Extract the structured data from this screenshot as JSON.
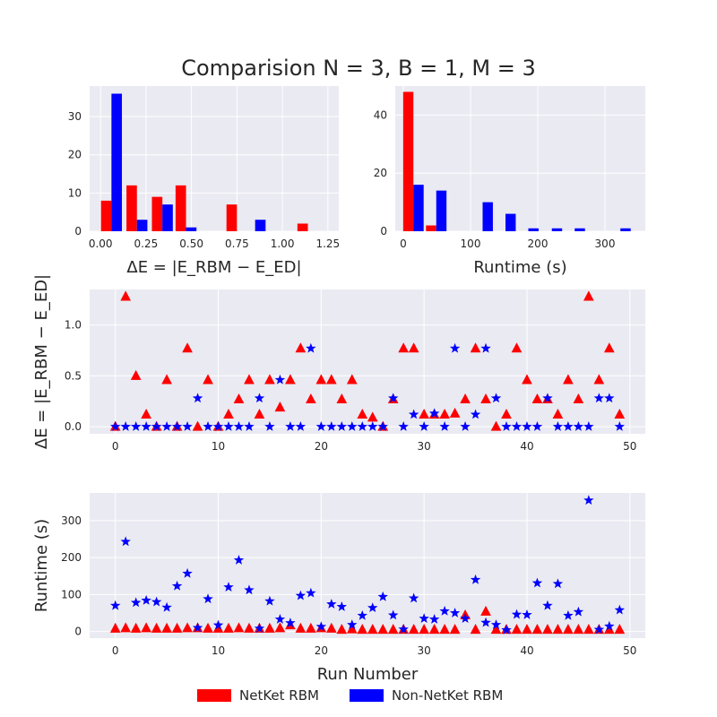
{
  "figure_title": "Comparision N = 3, B = 1, M = 3",
  "colors": {
    "netket": "#ff0000",
    "non_netket": "#0000ff",
    "panel_bg": "#eaeaf2",
    "grid": "#ffffff",
    "tick_text": "#262626"
  },
  "legend": {
    "netket_label": "NetKet RBM",
    "non_netket_label": "Non-NetKet RBM"
  },
  "chart_data": [
    {
      "id": "hist_energy",
      "type": "bar",
      "title": "",
      "xlabel": "ΔE = |E_RBM − E_ED|",
      "ylabel": "",
      "xlim": [
        -0.06,
        1.31
      ],
      "ylim": [
        0,
        38
      ],
      "xticks": [
        0.0,
        0.25,
        0.5,
        0.75,
        1.0,
        1.25
      ],
      "xtick_labels": [
        "0.00",
        "0.25",
        "0.50",
        "0.75",
        "1.00",
        "1.25"
      ],
      "yticks": [
        0,
        10,
        20,
        30
      ],
      "bin_width": 0.115,
      "bin_centers": [
        0.06,
        0.2,
        0.34,
        0.47,
        0.61,
        0.75,
        0.85,
        0.98,
        1.14
      ],
      "series": [
        {
          "name": "NetKet RBM",
          "values": [
            8,
            12,
            9,
            12,
            0,
            7,
            0,
            0,
            2
          ]
        },
        {
          "name": "Non-NetKet RBM",
          "values": [
            36,
            3,
            7,
            1,
            0,
            0,
            3,
            0,
            0
          ]
        }
      ],
      "grid": true
    },
    {
      "id": "hist_runtime",
      "type": "bar",
      "title": "",
      "xlabel": "Runtime (s)",
      "ylabel": "",
      "xlim": [
        -12,
        360
      ],
      "ylim": [
        0,
        50
      ],
      "xticks": [
        0,
        100,
        200,
        300
      ],
      "xtick_labels": [
        "0",
        "100",
        "200",
        "300"
      ],
      "yticks": [
        0,
        20,
        40
      ],
      "bin_width": 30.5,
      "bin_centers": [
        15,
        49,
        84,
        118,
        152,
        186,
        221,
        255,
        289,
        323
      ],
      "series": [
        {
          "name": "NetKet RBM",
          "values": [
            48,
            2,
            0,
            0,
            0,
            0,
            0,
            0,
            0,
            0
          ]
        },
        {
          "name": "Non-NetKet RBM",
          "values": [
            16,
            14,
            0,
            10,
            6,
            1,
            1,
            1,
            0,
            1
          ]
        }
      ],
      "grid": true
    },
    {
      "id": "scatter_energy",
      "type": "scatter",
      "title": "",
      "xlabel": "",
      "ylabel": "ΔE = |E_RBM − E_ED|",
      "xlim": [
        -2.5,
        51.5
      ],
      "ylim": [
        -0.07,
        1.35
      ],
      "xticks": [
        0,
        10,
        20,
        30,
        40,
        50
      ],
      "xtick_labels": [
        "0",
        "10",
        "20",
        "30",
        "40",
        "50"
      ],
      "yticks": [
        0.0,
        0.5,
        1.0
      ],
      "ytick_labels": [
        "0.0",
        "0.5",
        "1.0"
      ],
      "x": [
        0,
        1,
        2,
        3,
        4,
        5,
        6,
        7,
        8,
        9,
        10,
        11,
        12,
        13,
        14,
        15,
        16,
        17,
        18,
        19,
        20,
        21,
        22,
        23,
        24,
        25,
        26,
        27,
        28,
        29,
        30,
        31,
        32,
        33,
        34,
        35,
        36,
        37,
        38,
        39,
        40,
        41,
        42,
        43,
        44,
        45,
        46,
        47,
        48,
        49
      ],
      "series": [
        {
          "name": "NetKet RBM",
          "marker": "triangle",
          "values": [
            0.0,
            1.28,
            0.5,
            0.12,
            0.0,
            0.46,
            0.0,
            0.77,
            0.0,
            0.46,
            0.0,
            0.12,
            0.27,
            0.46,
            0.12,
            0.46,
            0.19,
            0.46,
            0.77,
            0.27,
            0.46,
            0.46,
            0.27,
            0.46,
            0.12,
            0.09,
            0.0,
            0.27,
            0.77,
            0.77,
            0.12,
            0.12,
            0.12,
            0.13,
            0.27,
            0.77,
            0.27,
            0.0,
            0.12,
            0.77,
            0.46,
            0.27,
            0.27,
            0.12,
            0.46,
            0.27,
            1.28,
            0.46,
            0.77,
            0.12
          ]
        },
        {
          "name": "Non-NetKet RBM",
          "marker": "star",
          "values": [
            0.0,
            0.0,
            0.0,
            0.0,
            0.0,
            0.0,
            0.0,
            0.0,
            0.28,
            0.0,
            0.0,
            0.0,
            0.0,
            0.0,
            0.28,
            0.0,
            0.46,
            0.0,
            0.0,
            0.77,
            0.0,
            0.0,
            0.0,
            0.0,
            0.0,
            0.0,
            0.0,
            0.28,
            0.0,
            0.12,
            0.0,
            0.13,
            0.0,
            0.77,
            0.0,
            0.12,
            0.77,
            0.28,
            0.0,
            0.0,
            0.0,
            0.0,
            0.28,
            0.0,
            0.0,
            0.0,
            0.0,
            0.28,
            0.28,
            0.0
          ]
        }
      ],
      "grid": true
    },
    {
      "id": "scatter_runtime",
      "type": "scatter",
      "title": "",
      "xlabel": "Run Number",
      "ylabel": "Runtime (s)",
      "xlim": [
        -2.5,
        51.5
      ],
      "ylim": [
        -18,
        375
      ],
      "xticks": [
        0,
        10,
        20,
        30,
        40,
        50
      ],
      "xtick_labels": [
        "0",
        "10",
        "20",
        "30",
        "40",
        "50"
      ],
      "yticks": [
        0,
        100,
        200,
        300
      ],
      "ytick_labels": [
        "0",
        "100",
        "200",
        "300"
      ],
      "x": [
        0,
        1,
        2,
        3,
        4,
        5,
        6,
        7,
        8,
        9,
        10,
        11,
        12,
        13,
        14,
        15,
        16,
        17,
        18,
        19,
        20,
        21,
        22,
        23,
        24,
        25,
        26,
        27,
        28,
        29,
        30,
        31,
        32,
        33,
        34,
        35,
        36,
        37,
        38,
        39,
        40,
        41,
        42,
        43,
        44,
        45,
        46,
        47,
        48,
        49
      ],
      "series": [
        {
          "name": "NetKet RBM",
          "marker": "triangle",
          "values": [
            8,
            9,
            8,
            9,
            8,
            8,
            8,
            9,
            9,
            8,
            8,
            8,
            9,
            8,
            8,
            8,
            9,
            17,
            8,
            8,
            9,
            8,
            5,
            6,
            5,
            5,
            5,
            5,
            5,
            5,
            5,
            5,
            5,
            5,
            44,
            5,
            54,
            5,
            5,
            5,
            5,
            5,
            5,
            5,
            5,
            5,
            5,
            5,
            5,
            5
          ]
        },
        {
          "name": "Non-NetKet RBM",
          "marker": "star",
          "values": [
            70,
            243,
            78,
            84,
            80,
            65,
            123,
            157,
            10,
            88,
            17,
            120,
            193,
            112,
            8,
            82,
            33,
            23,
            97,
            104,
            13,
            74,
            67,
            18,
            43,
            64,
            94,
            44,
            6,
            90,
            35,
            33,
            55,
            50,
            35,
            140,
            24,
            18,
            4,
            46,
            45,
            131,
            70,
            129,
            43,
            53,
            355,
            5,
            14,
            58
          ]
        }
      ],
      "grid": true
    }
  ]
}
